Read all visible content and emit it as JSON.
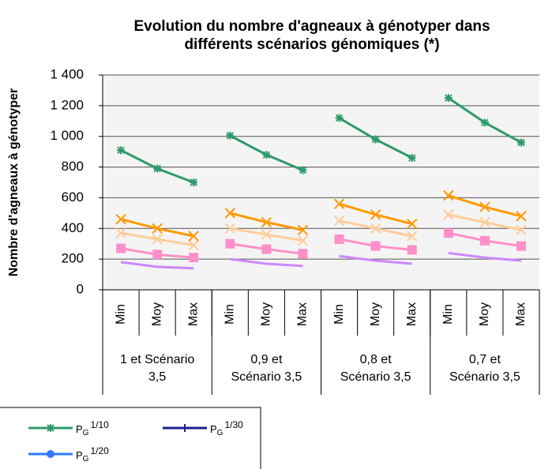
{
  "chart_data": {
    "type": "line",
    "title": [
      "Evolution du nombre d'agneaux à génotyper dans",
      "différents scénarios génomiques (*)"
    ],
    "y_label": "Nombre d'agneaux à génotyper",
    "categories": [
      "Min",
      "Moy",
      "Max",
      "Min",
      "Moy",
      "Max",
      "Min",
      "Moy",
      "Max",
      "Min",
      "Moy",
      "Max"
    ],
    "groups": [
      {
        "lines": [
          "1 et Scénario",
          "3,5"
        ],
        "size": 3
      },
      {
        "lines": [
          "0,9 et",
          "Scénario 3,5"
        ],
        "size": 3
      },
      {
        "lines": [
          "0,8 et",
          "Scénario 3,5"
        ],
        "size": 3
      },
      {
        "lines": [
          "0,7 et",
          "Scénario 3,5"
        ],
        "size": 3
      }
    ],
    "ylim": [
      0,
      1400
    ],
    "yticks": [
      0,
      200,
      400,
      600,
      800,
      {
        "value": 1000,
        "label": "1 000"
      },
      {
        "value": 1200,
        "label": "1 200"
      },
      {
        "value": 1400,
        "label": "1 400"
      }
    ],
    "grid": true,
    "series": [
      {
        "color": "#2e9a6a",
        "marker": "star",
        "values": [
          910,
          790,
          700,
          1005,
          880,
          780,
          1120,
          980,
          860,
          1250,
          1090,
          960
        ]
      },
      {
        "color": "#ff9900",
        "marker": "x",
        "values": [
          460,
          400,
          350,
          500,
          440,
          390,
          560,
          490,
          430,
          615,
          540,
          480
        ]
      },
      {
        "color": "#ffcc99",
        "marker": "x",
        "values": [
          370,
          330,
          290,
          400,
          360,
          320,
          450,
          400,
          350,
          490,
          440,
          390
        ]
      },
      {
        "color": "#ff8fc8",
        "marker": "square",
        "values": [
          270,
          230,
          210,
          300,
          265,
          235,
          330,
          285,
          260,
          370,
          320,
          285
        ]
      },
      {
        "color": "#cc88ff",
        "marker": "none",
        "values": [
          180,
          150,
          140,
          200,
          170,
          155,
          220,
          190,
          170,
          240,
          210,
          190
        ]
      }
    ],
    "legend": [
      {
        "symbol": "P",
        "subscript": "G",
        "text": "1/10",
        "color": "#2e9a6a",
        "marker": "star"
      },
      {
        "symbol": "P",
        "subscript": "G",
        "text": "1/30",
        "color": "#1f1f8f",
        "marker": "bar"
      },
      {
        "symbol": "P",
        "subscript": "G",
        "text": "1/20",
        "color": "#3377ff",
        "marker": "dot"
      }
    ]
  }
}
